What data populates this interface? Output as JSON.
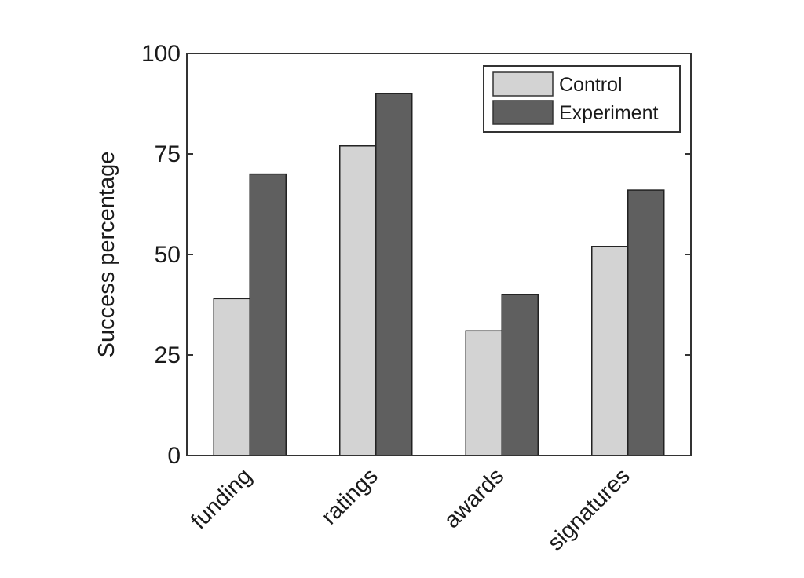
{
  "chart_data": {
    "type": "bar",
    "title": "",
    "xlabel": "",
    "ylabel": "Success percentage",
    "categories": [
      "funding",
      "ratings",
      "awards",
      "signatures"
    ],
    "series": [
      {
        "name": "Control",
        "values": [
          39,
          77,
          31,
          52
        ],
        "color": "#d3d3d3"
      },
      {
        "name": "Experiment",
        "values": [
          70,
          90,
          40,
          66
        ],
        "color": "#5f5f5f"
      }
    ],
    "ylim": [
      0,
      100
    ],
    "yticks": [
      "0",
      "25",
      "50",
      "75",
      "100"
    ],
    "grid": false,
    "legend": "top-right"
  }
}
